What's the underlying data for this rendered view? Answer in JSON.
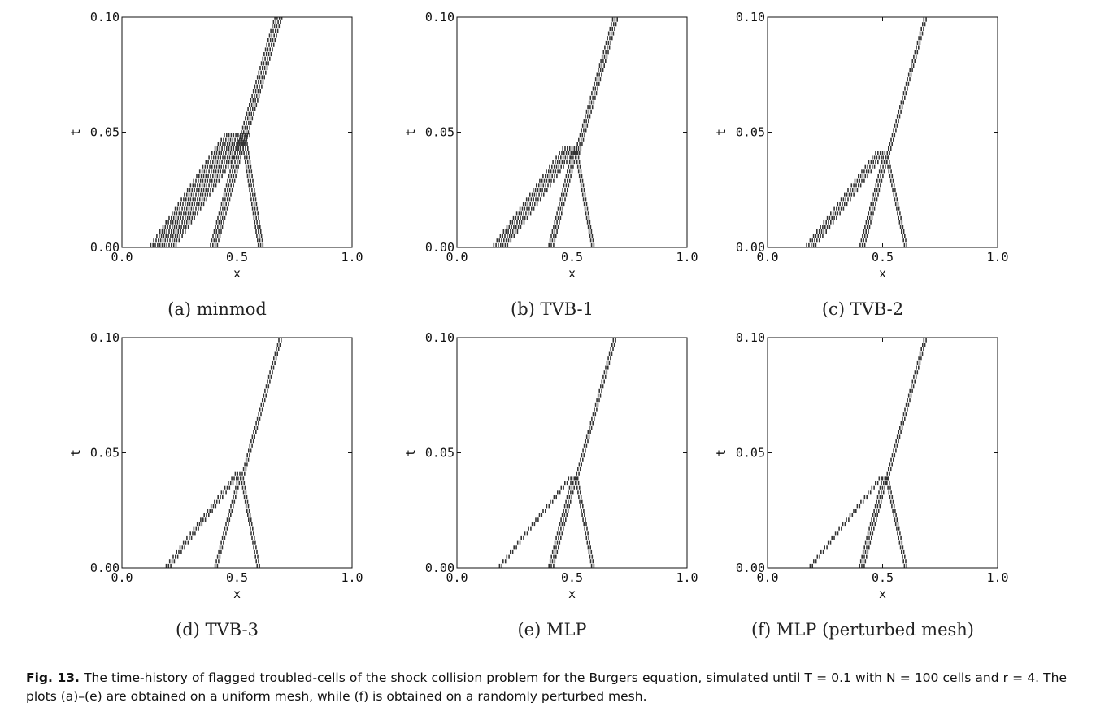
{
  "figure": {
    "number_label": "Fig. 13.",
    "caption_text": "The time-history of flagged troubled-cells of the shock collision problem for the Burgers equation, simulated until T = 0.1 with N = 100 cells and r = 4. The plots (a)–(e) are obtained on a uniform mesh, while (f) is obtained on a randomly perturbed mesh."
  },
  "chart_data": [
    {
      "type": "scatter",
      "panel_label": "(a) minmod",
      "xlabel": "x",
      "ylabel": "t",
      "xlim": [
        0.0,
        1.0
      ],
      "ylim": [
        0.0,
        0.1
      ],
      "xticks": [
        "0.0",
        "0.5",
        "1.0"
      ],
      "yticks": [
        "0.00",
        "0.05",
        "0.10"
      ],
      "marker": "vertical-segment",
      "color": "#333333",
      "branches": [
        {
          "name": "left rarefaction band",
          "x": [
            0.18,
            0.5
          ],
          "t": [
            0.0,
            0.048
          ],
          "width": 0.12
        },
        {
          "name": "inner left shock",
          "x": [
            0.4,
            0.52
          ],
          "t": [
            0.0,
            0.045
          ],
          "width": 0.04
        },
        {
          "name": "right shock",
          "x": [
            0.6,
            0.53
          ],
          "t": [
            0.0,
            0.045
          ],
          "width": 0.025
        },
        {
          "name": "merged shock",
          "x": [
            0.52,
            0.68
          ],
          "t": [
            0.045,
            0.1
          ],
          "width": 0.035
        }
      ]
    },
    {
      "type": "scatter",
      "panel_label": "(b) TVB-1",
      "xlabel": "x",
      "ylabel": "t",
      "xlim": [
        0.0,
        1.0
      ],
      "ylim": [
        0.0,
        0.1
      ],
      "xticks": [
        "0.0",
        "0.5",
        "1.0"
      ],
      "yticks": [
        "0.00",
        "0.05",
        "0.10"
      ],
      "marker": "vertical-segment",
      "color": "#333333",
      "branches": [
        {
          "name": "left rarefaction band",
          "x": [
            0.19,
            0.49
          ],
          "t": [
            0.0,
            0.042
          ],
          "width": 0.07
        },
        {
          "name": "inner left shock",
          "x": [
            0.41,
            0.51
          ],
          "t": [
            0.0,
            0.04
          ],
          "width": 0.03
        },
        {
          "name": "right shock",
          "x": [
            0.59,
            0.52
          ],
          "t": [
            0.0,
            0.04
          ],
          "width": 0.02
        },
        {
          "name": "merged shock",
          "x": [
            0.52,
            0.69
          ],
          "t": [
            0.04,
            0.1
          ],
          "width": 0.025
        }
      ]
    },
    {
      "type": "scatter",
      "panel_label": "(c) TVB-2",
      "xlabel": "x",
      "ylabel": "t",
      "xlim": [
        0.0,
        1.0
      ],
      "ylim": [
        0.0,
        0.1
      ],
      "xticks": [
        "0.0",
        "0.5",
        "1.0"
      ],
      "yticks": [
        "0.00",
        "0.05",
        "0.10"
      ],
      "marker": "vertical-segment",
      "color": "#333333",
      "branches": [
        {
          "name": "left rarefaction band",
          "x": [
            0.19,
            0.49
          ],
          "t": [
            0.0,
            0.04
          ],
          "width": 0.05
        },
        {
          "name": "inner left shock",
          "x": [
            0.41,
            0.51
          ],
          "t": [
            0.0,
            0.038
          ],
          "width": 0.025
        },
        {
          "name": "right shock",
          "x": [
            0.6,
            0.52
          ],
          "t": [
            0.0,
            0.038
          ],
          "width": 0.02
        },
        {
          "name": "merged shock",
          "x": [
            0.52,
            0.69
          ],
          "t": [
            0.038,
            0.1
          ],
          "width": 0.02
        }
      ]
    },
    {
      "type": "scatter",
      "panel_label": "(d) TVB-3",
      "xlabel": "x",
      "ylabel": "t",
      "xlim": [
        0.0,
        1.0
      ],
      "ylim": [
        0.0,
        0.1
      ],
      "xticks": [
        "0.0",
        "0.5",
        "1.0"
      ],
      "yticks": [
        "0.00",
        "0.05",
        "0.10"
      ],
      "marker": "vertical-segment",
      "color": "#333333",
      "branches": [
        {
          "name": "left rarefaction band",
          "x": [
            0.2,
            0.5
          ],
          "t": [
            0.0,
            0.04
          ],
          "width": 0.025
        },
        {
          "name": "inner left shock",
          "x": [
            0.41,
            0.51
          ],
          "t": [
            0.0,
            0.038
          ],
          "width": 0.02
        },
        {
          "name": "right shock",
          "x": [
            0.59,
            0.52
          ],
          "t": [
            0.0,
            0.038
          ],
          "width": 0.015
        },
        {
          "name": "merged shock",
          "x": [
            0.52,
            0.69
          ],
          "t": [
            0.038,
            0.1
          ],
          "width": 0.015
        }
      ]
    },
    {
      "type": "scatter",
      "panel_label": "(e) MLP",
      "xlabel": "x",
      "ylabel": "t",
      "xlim": [
        0.0,
        1.0
      ],
      "ylim": [
        0.0,
        0.1
      ],
      "xticks": [
        "0.0",
        "0.5",
        "1.0"
      ],
      "yticks": [
        "0.00",
        "0.05",
        "0.10"
      ],
      "marker": "vertical-segment",
      "color": "#333333",
      "branches": [
        {
          "name": "left rarefaction band",
          "x": [
            0.19,
            0.49
          ],
          "t": [
            0.0,
            0.038
          ],
          "width": 0.02
        },
        {
          "name": "inner left shock",
          "x": [
            0.41,
            0.51
          ],
          "t": [
            0.0,
            0.038
          ],
          "width": 0.03
        },
        {
          "name": "right shock",
          "x": [
            0.59,
            0.52
          ],
          "t": [
            0.0,
            0.038
          ],
          "width": 0.02
        },
        {
          "name": "merged shock",
          "x": [
            0.52,
            0.69
          ],
          "t": [
            0.038,
            0.1
          ],
          "width": 0.02
        }
      ]
    },
    {
      "type": "scatter",
      "panel_label": "(f) MLP (perturbed mesh)",
      "xlabel": "x",
      "ylabel": "t",
      "xlim": [
        0.0,
        1.0
      ],
      "ylim": [
        0.0,
        0.1
      ],
      "xticks": [
        "0.0",
        "0.5",
        "1.0"
      ],
      "yticks": [
        "0.00",
        "0.05",
        "0.10"
      ],
      "marker": "vertical-segment",
      "color": "#333333",
      "branches": [
        {
          "name": "left rarefaction band",
          "x": [
            0.19,
            0.49
          ],
          "t": [
            0.0,
            0.038
          ],
          "width": 0.02
        },
        {
          "name": "inner left shock",
          "x": [
            0.41,
            0.51
          ],
          "t": [
            0.0,
            0.038
          ],
          "width": 0.03
        },
        {
          "name": "right shock",
          "x": [
            0.6,
            0.52
          ],
          "t": [
            0.0,
            0.038
          ],
          "width": 0.02
        },
        {
          "name": "merged shock",
          "x": [
            0.52,
            0.69
          ],
          "t": [
            0.038,
            0.1
          ],
          "width": 0.02
        }
      ]
    }
  ]
}
